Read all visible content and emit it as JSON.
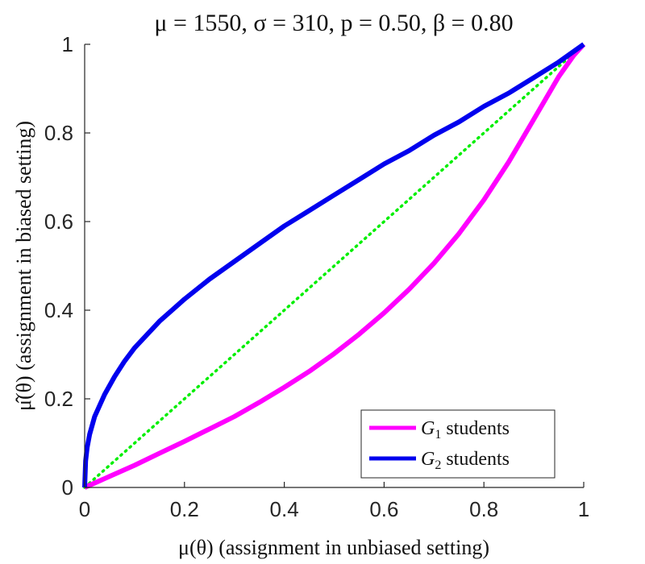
{
  "chart_data": {
    "type": "line",
    "title": "μ = 1550, σ = 310, p = 0.50, β = 0.80",
    "xlabel": "μ(θ) (assignment in unbiased setting)",
    "ylabel": "μ̂(θ) (assignment in biased setting)",
    "xlim": [
      0,
      1
    ],
    "ylim": [
      0,
      1
    ],
    "xticks": [
      "0",
      "0.2",
      "0.4",
      "0.6",
      "0.8",
      "1"
    ],
    "yticks": [
      "0",
      "0.2",
      "0.4",
      "0.6",
      "0.8",
      "1"
    ],
    "grid": false,
    "legend_position": "bottom-right",
    "series": [
      {
        "name": "G1 students",
        "legend_main": "G",
        "legend_sub": "1",
        "legend_rest": " students",
        "color": "#ff00ff",
        "style": "solid",
        "x": [
          0,
          0.05,
          0.1,
          0.15,
          0.2,
          0.25,
          0.3,
          0.35,
          0.4,
          0.45,
          0.5,
          0.55,
          0.6,
          0.65,
          0.7,
          0.75,
          0.8,
          0.85,
          0.9,
          0.95,
          0.98,
          1
        ],
        "y": [
          0,
          0.025,
          0.05,
          0.077,
          0.104,
          0.132,
          0.16,
          0.192,
          0.226,
          0.262,
          0.302,
          0.346,
          0.394,
          0.447,
          0.506,
          0.573,
          0.649,
          0.735,
          0.831,
          0.927,
          0.975,
          1
        ]
      },
      {
        "name": "G2 students",
        "legend_main": "G",
        "legend_sub": "2",
        "legend_rest": " students",
        "color": "#0000ee",
        "style": "solid",
        "x": [
          0,
          0.002,
          0.005,
          0.01,
          0.02,
          0.04,
          0.06,
          0.08,
          0.1,
          0.15,
          0.2,
          0.25,
          0.3,
          0.35,
          0.4,
          0.45,
          0.5,
          0.55,
          0.6,
          0.65,
          0.7,
          0.75,
          0.8,
          0.85,
          0.9,
          0.95,
          1
        ],
        "y": [
          0,
          0.06,
          0.09,
          0.12,
          0.16,
          0.21,
          0.25,
          0.285,
          0.315,
          0.375,
          0.425,
          0.47,
          0.51,
          0.55,
          0.59,
          0.625,
          0.66,
          0.695,
          0.73,
          0.76,
          0.795,
          0.825,
          0.86,
          0.89,
          0.925,
          0.96,
          1
        ]
      },
      {
        "name": "",
        "color": "#00ee00",
        "style": "dotted",
        "x": [
          0,
          1
        ],
        "y": [
          0,
          1
        ]
      }
    ]
  }
}
